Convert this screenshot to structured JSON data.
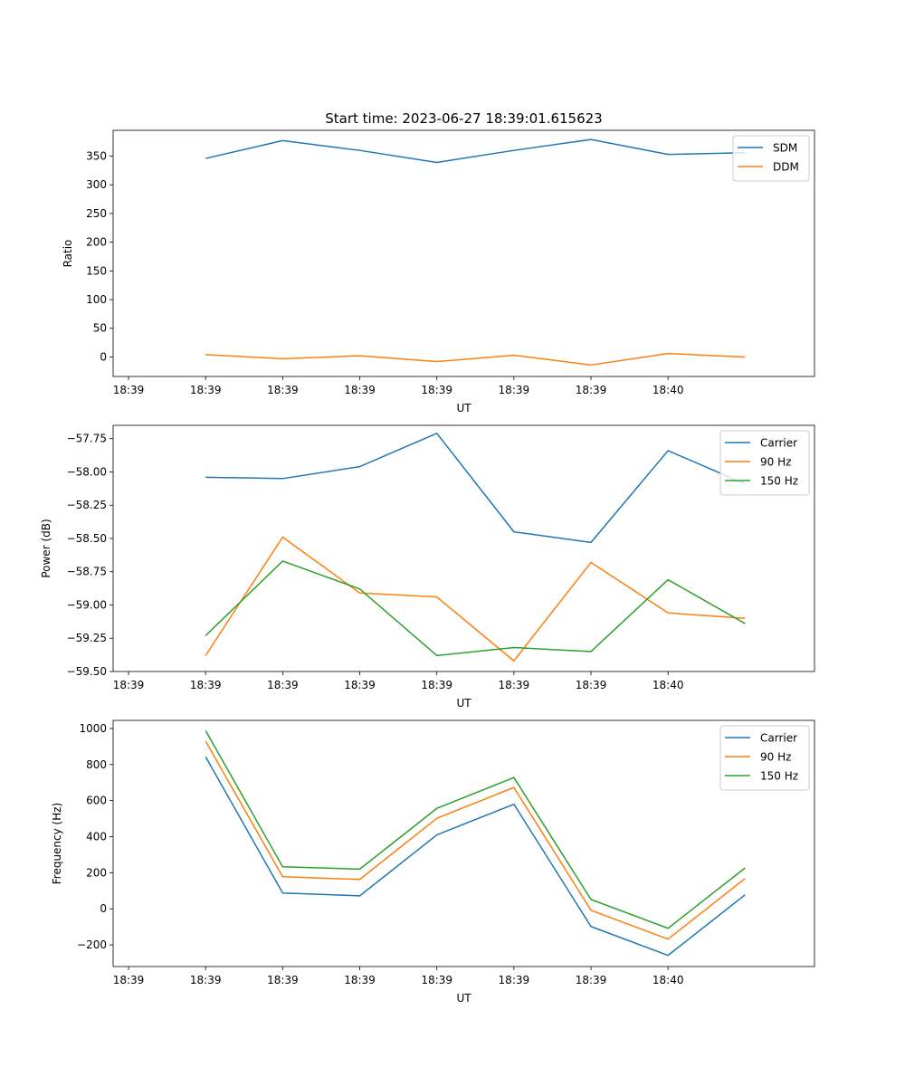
{
  "figure_title": "Start time: 2023-06-27 18:39:01.615623",
  "colors": {
    "blue": "#1f77b4",
    "orange": "#ff7f0e",
    "green": "#2ca02c"
  },
  "chart_data": [
    {
      "type": "line",
      "title": "Start time: 2023-06-27 18:39:01.615623",
      "xlabel": "UT",
      "ylabel": "Ratio",
      "x_tick_labels": [
        "18:39",
        "18:39",
        "18:39",
        "18:39",
        "18:39",
        "18:39",
        "18:39",
        "18:40"
      ],
      "x": [
        1,
        2,
        3,
        4,
        5,
        6,
        7,
        8
      ],
      "xlim": [
        -0.2,
        8.9
      ],
      "ylim": [
        -34,
        395
      ],
      "yticks": [
        0,
        50,
        100,
        150,
        200,
        250,
        300,
        350
      ],
      "grid": false,
      "legend": "top-right",
      "series": [
        {
          "name": "SDM",
          "color": "#1f77b4",
          "values": [
            346,
            377,
            360,
            339,
            360,
            379,
            353,
            356
          ]
        },
        {
          "name": "DDM",
          "color": "#ff7f0e",
          "values": [
            4,
            -3,
            2,
            -8,
            3,
            -14,
            6,
            0
          ]
        }
      ]
    },
    {
      "type": "line",
      "xlabel": "UT",
      "ylabel": "Power (dB)",
      "x_tick_labels": [
        "18:39",
        "18:39",
        "18:39",
        "18:39",
        "18:39",
        "18:39",
        "18:39",
        "18:40"
      ],
      "x": [
        1,
        2,
        3,
        4,
        5,
        6,
        7,
        8
      ],
      "xlim": [
        -0.2,
        8.9
      ],
      "ylim": [
        -59.5,
        -57.65
      ],
      "yticks": [
        -59.5,
        -59.25,
        -59.0,
        -58.75,
        -58.5,
        -58.25,
        -58.0,
        -57.75
      ],
      "ytick_labels": [
        "−59.50",
        "−59.25",
        "−59.00",
        "−58.75",
        "−58.50",
        "−58.25",
        "−58.00",
        "−57.75"
      ],
      "grid": false,
      "legend": "top-right",
      "series": [
        {
          "name": "Carrier",
          "color": "#1f77b4",
          "values": [
            -58.04,
            -58.05,
            -57.96,
            -57.71,
            -58.45,
            -58.53,
            -57.84,
            -58.09
          ]
        },
        {
          "name": "90 Hz",
          "color": "#ff7f0e",
          "values": [
            -59.38,
            -58.49,
            -58.91,
            -58.94,
            -59.42,
            -58.68,
            -59.06,
            -59.1
          ]
        },
        {
          "name": "150 Hz",
          "color": "#2ca02c",
          "values": [
            -59.23,
            -58.67,
            -58.88,
            -59.38,
            -59.32,
            -59.35,
            -58.81,
            -59.14
          ]
        }
      ]
    },
    {
      "type": "line",
      "xlabel": "UT",
      "ylabel": "Frequency (Hz)",
      "x_tick_labels": [
        "18:39",
        "18:39",
        "18:39",
        "18:39",
        "18:39",
        "18:39",
        "18:39",
        "18:40"
      ],
      "x": [
        1,
        2,
        3,
        4,
        5,
        6,
        7,
        8
      ],
      "xlim": [
        -0.2,
        8.9
      ],
      "ylim": [
        -320,
        1045
      ],
      "yticks": [
        -200,
        0,
        200,
        400,
        600,
        800,
        1000
      ],
      "ytick_labels": [
        "−200",
        "0",
        "200",
        "400",
        "600",
        "800",
        "1000"
      ],
      "grid": false,
      "legend": "top-right",
      "series": [
        {
          "name": "Carrier",
          "color": "#1f77b4",
          "values": [
            843,
            88,
            72,
            410,
            580,
            -98,
            -258,
            78
          ]
        },
        {
          "name": "90 Hz",
          "color": "#ff7f0e",
          "values": [
            930,
            178,
            163,
            502,
            673,
            -8,
            -168,
            168
          ]
        },
        {
          "name": "150 Hz",
          "color": "#2ca02c",
          "values": [
            988,
            233,
            220,
            557,
            728,
            52,
            -108,
            227
          ]
        }
      ]
    }
  ]
}
